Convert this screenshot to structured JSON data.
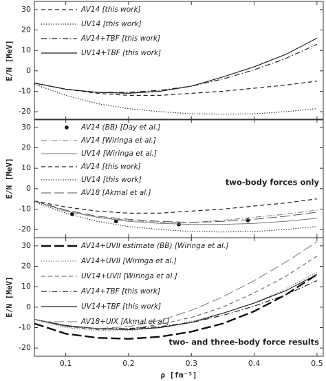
{
  "chart_data": [
    {
      "type": "line",
      "y_label": "E/N [MeV]",
      "legend": "upper left",
      "xlim": [
        0.05,
        0.51
      ],
      "ylim": [
        -24,
        34
      ],
      "xticks": [
        0.1,
        0.2,
        0.3,
        0.4,
        0.5
      ],
      "yticks": [
        -20,
        -10,
        0,
        10,
        20,
        30
      ],
      "x": [
        0.05,
        0.1,
        0.15,
        0.2,
        0.25,
        0.3,
        0.35,
        0.4,
        0.45,
        0.5
      ],
      "series": [
        {
          "name": "AV14 [this work]",
          "color": "#222222",
          "style": "dashed",
          "linewidth": 1.2,
          "values": [
            -6,
            -9,
            -11,
            -12,
            -12,
            -11,
            -10,
            -8.5,
            -7,
            -5
          ]
        },
        {
          "name": "UV14 [this work]",
          "color": "#222222",
          "style": "dotted",
          "linewidth": 1.2,
          "values": [
            -6.5,
            -12,
            -16,
            -18.5,
            -20,
            -21,
            -21.2,
            -21,
            -20,
            -18.5
          ]
        },
        {
          "name": "AV14+TBF [this work]",
          "color": "#222222",
          "style": "dashdot",
          "linewidth": 1.2,
          "values": [
            -6,
            -9,
            -10.5,
            -10.5,
            -9.5,
            -7.5,
            -4,
            0.5,
            6,
            13
          ]
        },
        {
          "name": "UV14+TBF [this work]",
          "color": "#222222",
          "style": "solid",
          "linewidth": 1.2,
          "values": [
            -6,
            -9,
            -10.5,
            -11,
            -10,
            -7.5,
            -3,
            2,
            8,
            16
          ]
        }
      ]
    },
    {
      "type": "line",
      "y_label": "E/N [MeV]",
      "legend": "upper left",
      "annotation": "two-body forces only",
      "xlim": [
        0.05,
        0.51
      ],
      "ylim": [
        -24,
        34
      ],
      "xticks": [
        0.1,
        0.2,
        0.3,
        0.4,
        0.5
      ],
      "yticks": [
        -20,
        -10,
        0,
        10,
        20,
        30
      ],
      "x": [
        0.05,
        0.1,
        0.15,
        0.2,
        0.25,
        0.3,
        0.35,
        0.4,
        0.45,
        0.5
      ],
      "series": [
        {
          "name": "AV14 (BB) [Day et al.]",
          "color": "#111111",
          "style": "points",
          "x": [
            0.11,
            0.18,
            0.28,
            0.39
          ],
          "values": [
            -12.5,
            -16,
            -17.5,
            -15.5
          ]
        },
        {
          "name": "AV14 [Wiringa et al.]",
          "color": "#777777",
          "style": "dashdot",
          "linewidth": 1,
          "values": [
            -6,
            -11,
            -14,
            -15.5,
            -16.5,
            -16.5,
            -15.5,
            -14,
            -12.5,
            -10.5
          ]
        },
        {
          "name": "UV14 [Wiringa et al.]",
          "color": "#777777",
          "style": "solid",
          "linewidth": 1,
          "values": [
            -6,
            -11,
            -14,
            -16,
            -17,
            -17.5,
            -17.5,
            -17,
            -16,
            -14.5
          ]
        },
        {
          "name": "AV14 [this work]",
          "color": "#222222",
          "style": "dashed",
          "linewidth": 1.2,
          "values": [
            -6,
            -9,
            -11,
            -12,
            -12,
            -11,
            -10,
            -8.5,
            -7,
            -5
          ]
        },
        {
          "name": "UV14 [this work]",
          "color": "#222222",
          "style": "dotted",
          "linewidth": 1.2,
          "values": [
            -6.5,
            -12,
            -16,
            -18.5,
            -20,
            -21,
            -21.2,
            -21,
            -20,
            -18.5
          ]
        },
        {
          "name": "AV18 [Akmal et al.]",
          "color": "#555555",
          "style": "longdash",
          "linewidth": 1,
          "values": [
            -6,
            -10.5,
            -13.5,
            -15,
            -16,
            -16.5,
            -16,
            -15,
            -13.5,
            -11.5
          ]
        }
      ]
    },
    {
      "type": "line",
      "y_label": "E/N [MeV]",
      "x_label": "ρ [fm⁻³]",
      "legend": "upper left",
      "annotation": "two- and three-body force results",
      "xlim": [
        0.05,
        0.51
      ],
      "ylim": [
        -24,
        34
      ],
      "xticks": [
        0.1,
        0.2,
        0.3,
        0.4,
        0.5
      ],
      "yticks": [
        -20,
        -10,
        0,
        10,
        20,
        30
      ],
      "x": [
        0.05,
        0.1,
        0.15,
        0.2,
        0.25,
        0.3,
        0.35,
        0.4,
        0.45,
        0.5
      ],
      "series": [
        {
          "name": "AV14+UVII estimate (BB) [Wiringa et al.]",
          "color": "#111111",
          "style": "longdash",
          "linewidth": 2.4,
          "values": [
            -8,
            -13,
            -15,
            -15.5,
            -14.5,
            -12,
            -8,
            -2,
            6,
            16
          ]
        },
        {
          "name": "AV14+UVII [Wiringa et al.]",
          "color": "#555555",
          "style": "dotted",
          "linewidth": 1,
          "values": [
            -6,
            -10,
            -11.5,
            -11.5,
            -10,
            -7,
            -3,
            2,
            9,
            17
          ]
        },
        {
          "name": "UV14+UVII [Wiringa et al.]",
          "color": "#555555",
          "style": "dashed",
          "linewidth": 1,
          "values": [
            -6,
            -9.5,
            -11,
            -10.5,
            -8.5,
            -5,
            0,
            7,
            15,
            25
          ]
        },
        {
          "name": "AV14+TBF [this work]",
          "color": "#222222",
          "style": "dashdot",
          "linewidth": 1.2,
          "values": [
            -6,
            -9,
            -10.5,
            -10.5,
            -9.5,
            -7.5,
            -4,
            0.5,
            6,
            13
          ]
        },
        {
          "name": "UV14+TBF [this work]",
          "color": "#222222",
          "style": "solid",
          "linewidth": 1.2,
          "values": [
            -6,
            -9,
            -10.5,
            -11,
            -10,
            -7.5,
            -3,
            2,
            8,
            16
          ]
        },
        {
          "name": "AV18+UIX [Akmal et al.]",
          "color": "#777777",
          "style": "longdash",
          "linewidth": 1,
          "values": [
            -6,
            -9.5,
            -10.5,
            -9.5,
            -6.5,
            -1.5,
            5,
            13,
            22,
            32
          ]
        }
      ]
    }
  ]
}
